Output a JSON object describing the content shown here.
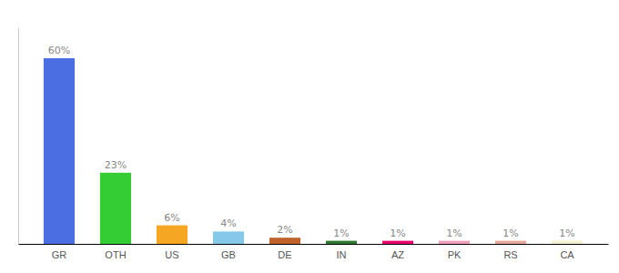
{
  "chart_data": {
    "type": "bar",
    "categories": [
      "GR",
      "OTH",
      "US",
      "GB",
      "DE",
      "IN",
      "AZ",
      "PK",
      "RS",
      "CA"
    ],
    "values": [
      60,
      23,
      6,
      4,
      2,
      1,
      1,
      1,
      1,
      1
    ],
    "value_labels": [
      "60%",
      "23%",
      "6%",
      "4%",
      "2%",
      "1%",
      "1%",
      "1%",
      "1%",
      "1%"
    ],
    "colors": [
      "#4a6fe3",
      "#33cc33",
      "#f5a623",
      "#85c8e8",
      "#c0632a",
      "#2d7a2d",
      "#e8006a",
      "#f0a0b8",
      "#e8a898",
      "#f5f0d0"
    ],
    "ylim": [
      0,
      70
    ],
    "data_labels": true,
    "tick_labels": "x",
    "grid": false
  }
}
